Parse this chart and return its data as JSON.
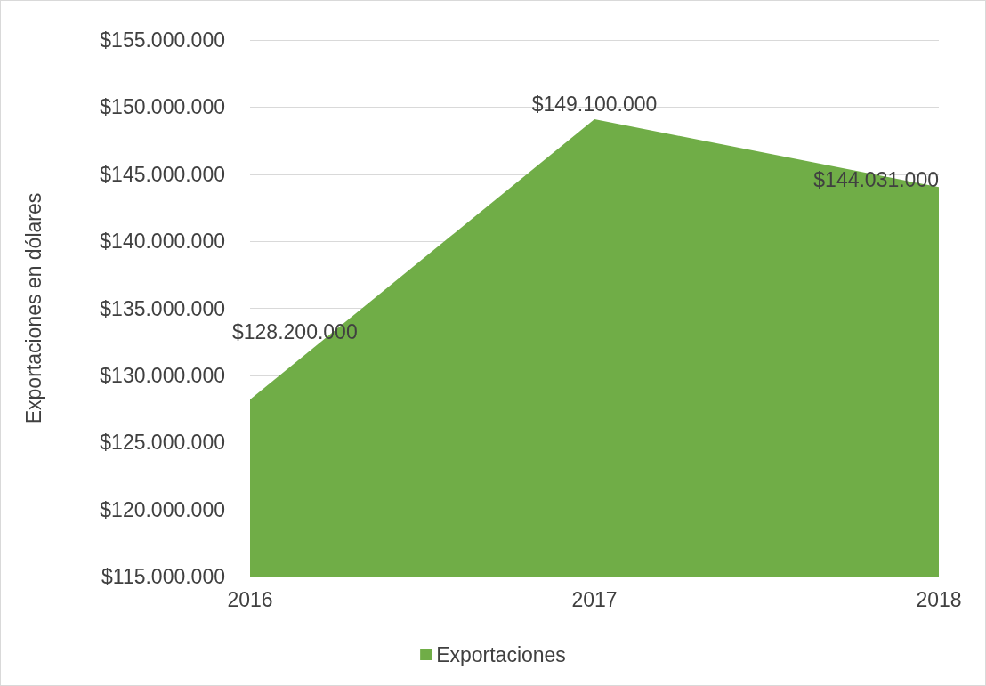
{
  "chart_data": {
    "type": "area",
    "ylabel": "Exportaciones en dólares",
    "categories": [
      "2016",
      "2017",
      "2018"
    ],
    "series": [
      {
        "name": "Exportaciones",
        "color": "#70ad47",
        "values": [
          128200000,
          149100000,
          144031000
        ],
        "value_labels": [
          "$128.200.000",
          "$149.100.000",
          "$144.031.000"
        ]
      }
    ],
    "ylim": [
      115000000,
      155000000
    ],
    "yticks": [
      {
        "value": 115000000,
        "label": "$115.000.000"
      },
      {
        "value": 120000000,
        "label": "$120.000.000"
      },
      {
        "value": 125000000,
        "label": "$125.000.000"
      },
      {
        "value": 130000000,
        "label": "$130.000.000"
      },
      {
        "value": 135000000,
        "label": "$135.000.000"
      },
      {
        "value": 140000000,
        "label": "$140.000.000"
      },
      {
        "value": 145000000,
        "label": "$145.000.000"
      },
      {
        "value": 150000000,
        "label": "$150.000.000"
      },
      {
        "value": 155000000,
        "label": "$155.000.000"
      }
    ],
    "grid": "y",
    "legend": "bottom"
  }
}
